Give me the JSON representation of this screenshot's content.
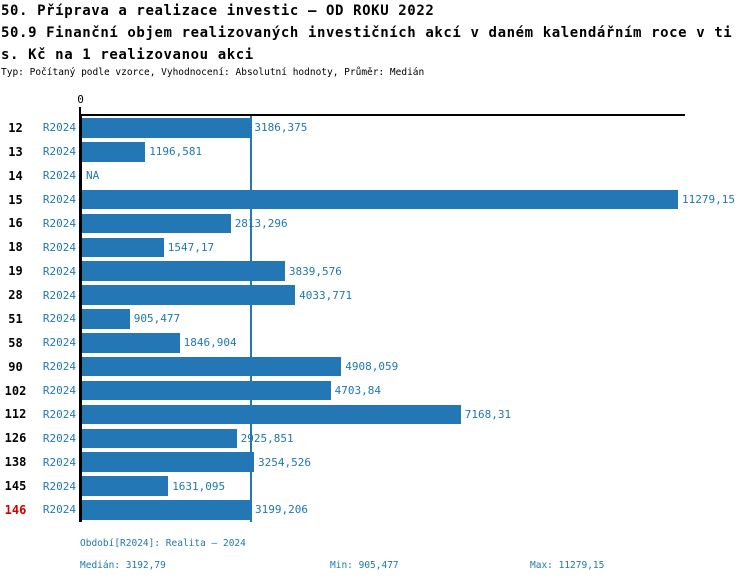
{
  "header": {
    "title_line1": "50. Příprava a realizace investic – OD ROKU 2022",
    "title_line2": "50.9 Finanční objem realizovaných investičních akcí v daném kalendářním roce v ti",
    "title_line3": "s. Kč na 1 realizovanou akci",
    "meta_line": "Typ: Počítaný podle vzorce, Vyhodnocení: Absolutní hodnoty, Průměr: Medián"
  },
  "chart_data": {
    "type": "bar",
    "orientation": "horizontal",
    "title": "50.9 Finanční objem realizovaných investičních akcí v daném kalendářním roce v tis. Kč na 1 realizovanou akci",
    "categories": [
      "12",
      "13",
      "14",
      "15",
      "16",
      "18",
      "19",
      "28",
      "51",
      "58",
      "90",
      "102",
      "112",
      "126",
      "138",
      "145",
      "146"
    ],
    "series": [
      {
        "name": "R2024",
        "values": [
          3186.375,
          1196.581,
          null,
          11279.15,
          2813.296,
          1547.17,
          3839.576,
          4033.771,
          905.477,
          1846.904,
          4908.059,
          4703.84,
          7168.31,
          2925.851,
          3254.526,
          1631.095,
          3199.206
        ],
        "labels": [
          "3186,375",
          "1196,581",
          "NA",
          "11279,15",
          "2813,296",
          "1547,17",
          "3839,576",
          "4033,771",
          "905,477",
          "1846,904",
          "4908,059",
          "4703,84",
          "7168,31",
          "2925,851",
          "3254,526",
          "1631,095",
          "3199,206"
        ]
      }
    ],
    "na_label": "NA",
    "xlim": [
      0,
      11279.15
    ],
    "x_ticks": [
      {
        "value": 0,
        "label": "0"
      }
    ],
    "reference_line": {
      "name": "Medián",
      "value": 3192.79
    },
    "highlighted_category": "146",
    "legend_position": "none",
    "grid": false
  },
  "footer": {
    "period_label": "Období[R2024]: Realita – 2024",
    "median_label": "Medián: 3192,79",
    "min_label": "Min: 905,477",
    "max_label": "Max: 11279,15"
  },
  "colors": {
    "bar": "#2277b4",
    "text_blue": "#1f77b4",
    "highlight_red": "#d10000",
    "axis_black": "#000000"
  }
}
